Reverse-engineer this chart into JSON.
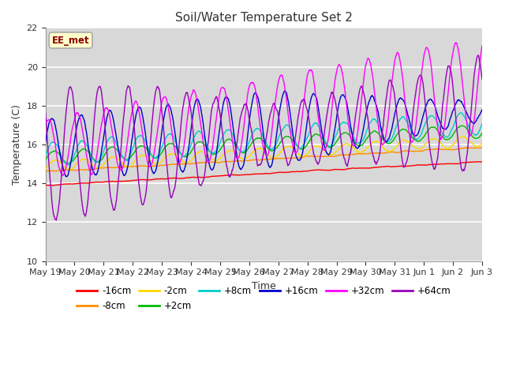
{
  "title": "Soil/Water Temperature Set 2",
  "xlabel": "Time",
  "ylabel": "Temperature (C)",
  "ylim": [
    10,
    22
  ],
  "yticks": [
    10,
    12,
    14,
    16,
    18,
    20,
    22
  ],
  "annotation": "EE_met",
  "annotation_color": "#8B0000",
  "annotation_bg": "#FFFFCC",
  "bg_color": "#FFFFFF",
  "plot_bg": "#D8D8D8",
  "grid_color": "#FFFFFF",
  "series_colors": {
    "-16cm": "#FF0000",
    "-8cm": "#FF8C00",
    "-2cm": "#FFD700",
    "+2cm": "#00BB00",
    "+8cm": "#00CCCC",
    "+16cm": "#0000CC",
    "+32cm": "#FF00FF",
    "+64cm": "#9900BB"
  },
  "date_labels": [
    "May 19",
    "May 20",
    "May 21",
    "May 22",
    "May 23",
    "May 24",
    "May 25",
    "May 26",
    "May 27",
    "May 28",
    "May 29",
    "May 30",
    "May 31",
    "Jun 1",
    "Jun 2",
    "Jun 3"
  ],
  "date_positions": [
    0,
    1,
    2,
    3,
    4,
    5,
    6,
    7,
    8,
    9,
    10,
    11,
    12,
    13,
    14,
    15
  ]
}
